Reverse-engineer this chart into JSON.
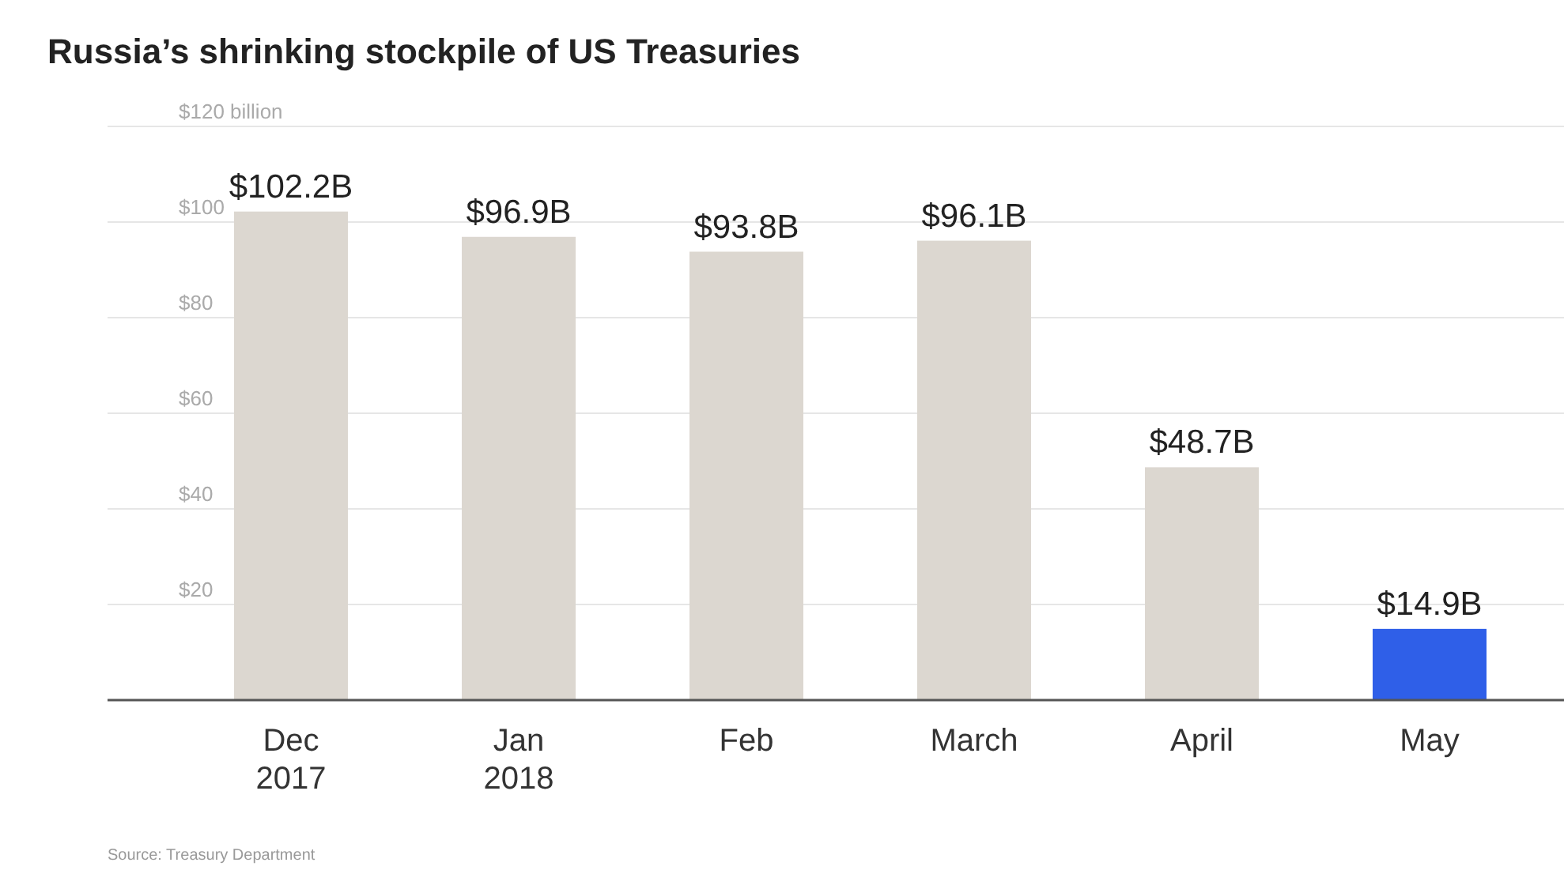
{
  "chart_data": {
    "type": "bar",
    "title": "Russia’s shrinking stockpile of US Treasuries",
    "categories": [
      "Dec 2017",
      "Jan 2018",
      "Feb",
      "March",
      "April",
      "May"
    ],
    "values": [
      102.2,
      96.9,
      93.8,
      96.1,
      48.7,
      14.9
    ],
    "colors": [
      "#dcd7d0",
      "#dcd7d0",
      "#dcd7d0",
      "#dcd7d0",
      "#dcd7d0",
      "#2f5fe8"
    ],
    "value_labels": [
      "$102.2B",
      "$96.9B",
      "$93.8B",
      "$96.1B",
      "$48.7B",
      "$14.9B"
    ],
    "ylim": [
      0,
      120
    ],
    "yticks": [
      {
        "value": 20,
        "label": "$20"
      },
      {
        "value": 40,
        "label": "$40"
      },
      {
        "value": 60,
        "label": "$60"
      },
      {
        "value": 80,
        "label": "$80"
      },
      {
        "value": 100,
        "label": "$100"
      },
      {
        "value": 120,
        "label": "$120 billion"
      }
    ],
    "grid": "y",
    "annotations": [
      "Source: Treasury Department"
    ]
  }
}
